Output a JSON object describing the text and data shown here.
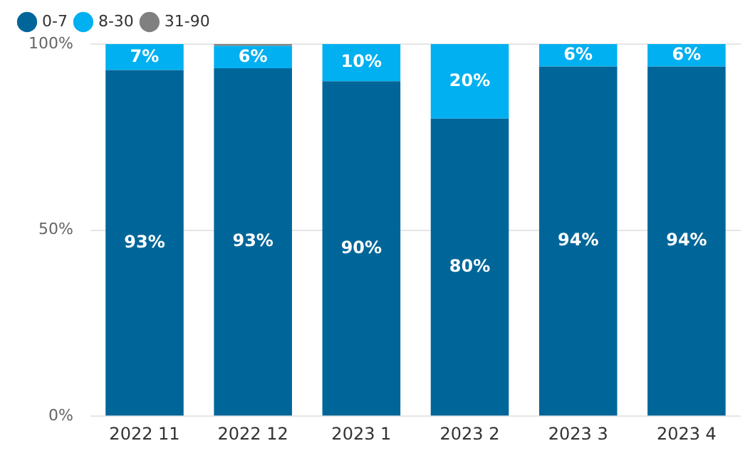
{
  "chart_data": {
    "type": "bar",
    "stacked": true,
    "categories": [
      "2022 11",
      "2022 12",
      "2023 1",
      "2023 2",
      "2023 3",
      "2023 4"
    ],
    "series": [
      {
        "name": "0-7",
        "color": "#006699",
        "values": [
          93,
          93.5,
          90,
          80,
          94,
          94
        ],
        "value_labels": [
          "93%",
          "93%",
          "90%",
          "80%",
          "94%",
          "94%"
        ]
      },
      {
        "name": "8-30",
        "color": "#00b0f0",
        "values": [
          7,
          6,
          10,
          20,
          6,
          6
        ],
        "value_labels": [
          "7%",
          "6%",
          "10%",
          "20%",
          "6%",
          "6%"
        ]
      },
      {
        "name": "31-90",
        "color": "#808080",
        "values": [
          0,
          0.5,
          0,
          0,
          0,
          0
        ],
        "value_labels": [
          null,
          null,
          null,
          null,
          null,
          null
        ]
      }
    ],
    "ylim": [
      0,
      100
    ],
    "yticks": [
      {
        "value": 0,
        "label": "0%"
      },
      {
        "value": 50,
        "label": "50%"
      },
      {
        "value": 100,
        "label": "100%"
      }
    ],
    "grid": "y",
    "legend": "top left"
  }
}
